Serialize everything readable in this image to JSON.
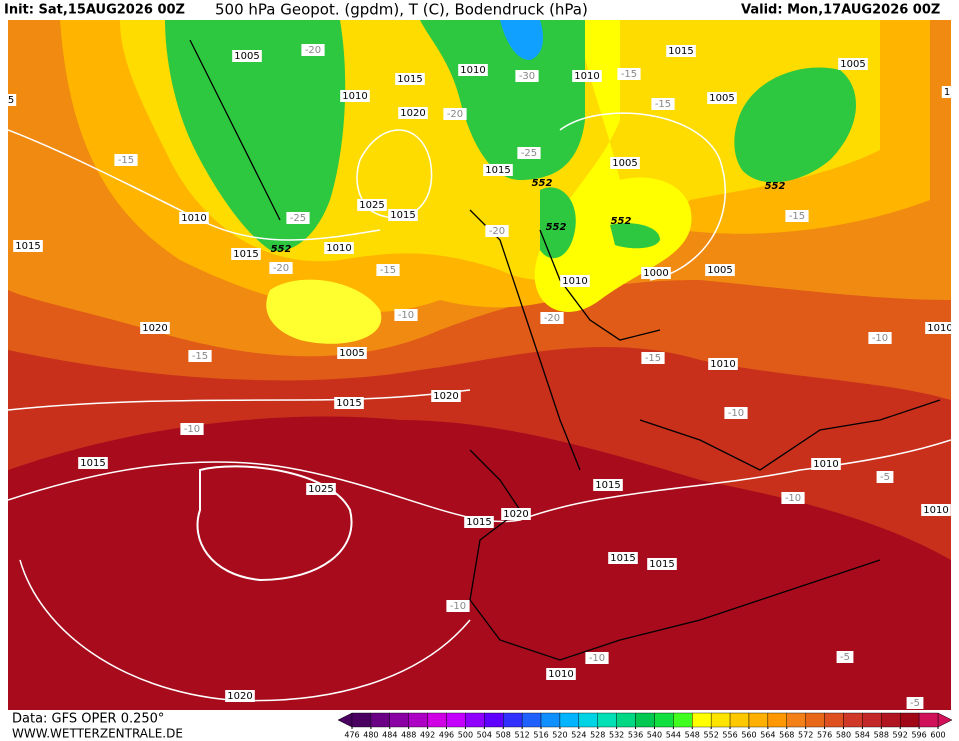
{
  "header": {
    "init": "Init: Sat,15AUG2026 00Z",
    "title": "500 hPa Geopot. (gpdm), T (C), Bodendruck (hPa)",
    "valid": "Valid: Mon,17AUG2026 00Z"
  },
  "footer": {
    "data": "Data: GFS OPER 0.250°",
    "site": "WWW.WETTERZENTRALE.DE"
  },
  "colorbar": {
    "ticks": [
      476,
      480,
      484,
      488,
      492,
      496,
      500,
      504,
      508,
      512,
      516,
      520,
      524,
      528,
      532,
      536,
      540,
      544,
      548,
      552,
      556,
      560,
      564,
      568,
      572,
      576,
      580,
      584,
      588,
      592,
      596,
      600
    ],
    "colors": [
      "#4a0060",
      "#6a0084",
      "#8a00a4",
      "#ae00c4",
      "#d000e4",
      "#c400ff",
      "#9000ff",
      "#6000ff",
      "#3030ff",
      "#2060ff",
      "#1090ff",
      "#00b4ff",
      "#00d4e4",
      "#00e0b4",
      "#00d884",
      "#00c850",
      "#10e040",
      "#40ff20",
      "#ffff00",
      "#ffe400",
      "#ffc800",
      "#ffb000",
      "#ff9800",
      "#f48018",
      "#e86818",
      "#de5020",
      "#d03828",
      "#c22828",
      "#b01420",
      "#a00818",
      "#d01058"
    ]
  },
  "map": {
    "pressure_labels": [
      "1005",
      "1005",
      "1015",
      "1010",
      "1010",
      "1015",
      "1010",
      "1005",
      "1020",
      "1015",
      "1005",
      "1025",
      "1015",
      "1010",
      "1015",
      "1015",
      "1010",
      "1000",
      "1005",
      "1010",
      "1020",
      "1005",
      "1010",
      "1015",
      "1020",
      "1015",
      "1010",
      "1015",
      "1025",
      "1015",
      "1020",
      "1010",
      "1015",
      "1015",
      "1010",
      "1020",
      "1010",
      "5",
      "1"
    ],
    "temperature_labels": [
      "-20",
      "-30",
      "-15",
      "-15",
      "-20",
      "-25",
      "-15",
      "-25",
      "-20",
      "-20",
      "-15",
      "-10",
      "-20",
      "-15",
      "-15",
      "-10",
      "-10",
      "-10",
      "-10",
      "-5",
      "-10",
      "-10",
      "-5",
      "-15",
      "-5"
    ],
    "geopotential_labels": [
      "552",
      "552",
      "552",
      "552",
      "552"
    ]
  }
}
